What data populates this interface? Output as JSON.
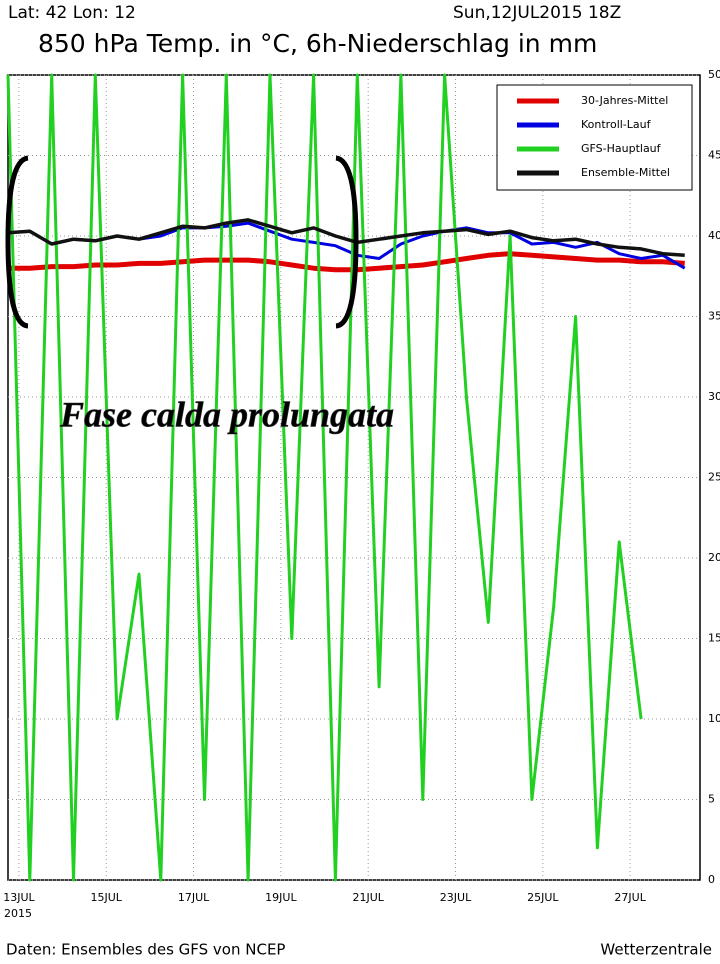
{
  "chart_data": {
    "type": "line",
    "header_left": "Lat: 42 Lon: 12",
    "header_right": "Sun,12JUL2015 18Z",
    "title": "850 hPa Temp. in °C, 6h-Niederschlag in mm",
    "annotation": "Fase calda prolungata",
    "footer_left": "Daten: Ensembles des GFS von NCEP",
    "footer_right": "Wetterzentrale",
    "x_year": "2015",
    "x": [
      12.75,
      13.25,
      13.75,
      14.25,
      14.75,
      15.25,
      15.75,
      16.25,
      16.75,
      17.25,
      17.75,
      18.25,
      18.75,
      19.25,
      19.75,
      20.25,
      20.75,
      21.25,
      21.75,
      22.25,
      22.75,
      23.25,
      23.75,
      24.25,
      24.75,
      25.25,
      25.75,
      26.25,
      26.75,
      27.25,
      27.75,
      28.25
    ],
    "xlim": [
      12.75,
      28.6
    ],
    "xticks": [
      {
        "value": 13,
        "label": "13JUL"
      },
      {
        "value": 15,
        "label": "15JUL"
      },
      {
        "value": 17,
        "label": "17JUL"
      },
      {
        "value": 19,
        "label": "19JUL"
      },
      {
        "value": 21,
        "label": "21JUL"
      },
      {
        "value": 23,
        "label": "23JUL"
      },
      {
        "value": 25,
        "label": "25JUL"
      },
      {
        "value": 27,
        "label": "27JUL"
      }
    ],
    "ylim": [
      0,
      50
    ],
    "yticks": [
      0,
      5,
      10,
      15,
      20,
      25,
      30,
      35,
      40,
      45,
      50
    ],
    "grid": true,
    "legend": "top-right",
    "series": [
      {
        "name": "30-Jahres-Mittel",
        "color": "#e00000",
        "values": [
          38.0,
          38.0,
          38.1,
          38.1,
          38.2,
          38.2,
          38.3,
          38.3,
          38.4,
          38.5,
          38.5,
          38.5,
          38.4,
          38.2,
          38.0,
          37.9,
          37.9,
          38.0,
          38.1,
          38.2,
          38.4,
          38.6,
          38.8,
          38.9,
          38.8,
          38.7,
          38.6,
          38.5,
          38.5,
          38.4,
          38.4,
          38.3
        ]
      },
      {
        "name": "Kontroll-Lauf",
        "color": "#0000e0",
        "values": [
          40.2,
          40.3,
          39.5,
          39.8,
          39.7,
          40.0,
          39.8,
          40.0,
          40.5,
          40.5,
          40.6,
          40.8,
          40.3,
          39.8,
          39.6,
          39.4,
          38.8,
          38.6,
          39.5,
          40.0,
          40.3,
          40.5,
          40.2,
          40.2,
          39.5,
          39.6,
          39.3,
          39.6,
          38.9,
          38.6,
          38.8,
          38.0
        ]
      },
      {
        "name": "GFS-Hauptlauf",
        "color": "#22d022",
        "values": [
          50,
          0,
          50,
          0,
          50,
          10,
          19,
          0,
          50,
          5,
          50,
          0,
          50,
          15,
          50,
          0,
          50,
          12,
          50,
          5,
          50,
          30,
          16,
          40,
          5,
          17,
          35,
          2,
          21,
          10,
          null,
          null
        ]
      },
      {
        "name": "Ensemble-Mittel",
        "color": "#111111",
        "values": [
          40.2,
          40.3,
          39.5,
          39.8,
          39.7,
          40.0,
          39.8,
          40.2,
          40.6,
          40.5,
          40.8,
          41.0,
          40.6,
          40.2,
          40.5,
          40.0,
          39.6,
          39.8,
          40.0,
          40.2,
          40.3,
          40.4,
          40.1,
          40.3,
          39.9,
          39.7,
          39.8,
          39.5,
          39.3,
          39.2,
          38.9,
          38.8
        ]
      }
    ]
  }
}
